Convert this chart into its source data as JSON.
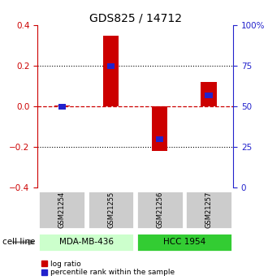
{
  "title": "GDS825 / 14712",
  "categories": [
    "GSM21254",
    "GSM21255",
    "GSM21256",
    "GSM21257"
  ],
  "log_ratio": [
    0.005,
    0.35,
    -0.22,
    0.12
  ],
  "percentile_rank": [
    50,
    75,
    30,
    57
  ],
  "ylim_left": [
    -0.4,
    0.4
  ],
  "ylim_right": [
    0,
    100
  ],
  "left_ticks": [
    -0.4,
    -0.2,
    0.0,
    0.2,
    0.4
  ],
  "right_ticks": [
    0,
    25,
    50,
    75,
    100
  ],
  "right_tick_labels": [
    "0",
    "25",
    "50",
    "75",
    "100%"
  ],
  "bar_color_red": "#cc0000",
  "bar_color_blue": "#2222cc",
  "bar_width": 0.32,
  "blue_bar_width": 0.15,
  "cell_line_groups": [
    {
      "label": "MDA-MB-436",
      "indices": [
        0,
        1
      ],
      "color": "#ccffcc"
    },
    {
      "label": "HCC 1954",
      "indices": [
        2,
        3
      ],
      "color": "#33cc33"
    }
  ],
  "cell_line_label": "cell line",
  "legend_red": "log ratio",
  "legend_blue": "percentile rank within the sample",
  "dotted_line_color": "black",
  "dashed_line_color": "#cc0000",
  "axis_color_left": "#cc0000",
  "axis_color_right": "#2222cc",
  "gsm_box_color": "#cccccc",
  "title_fontsize": 10,
  "tick_fontsize": 7.5,
  "legend_fontsize": 6.5,
  "gsm_fontsize": 6,
  "cell_fontsize": 7.5
}
